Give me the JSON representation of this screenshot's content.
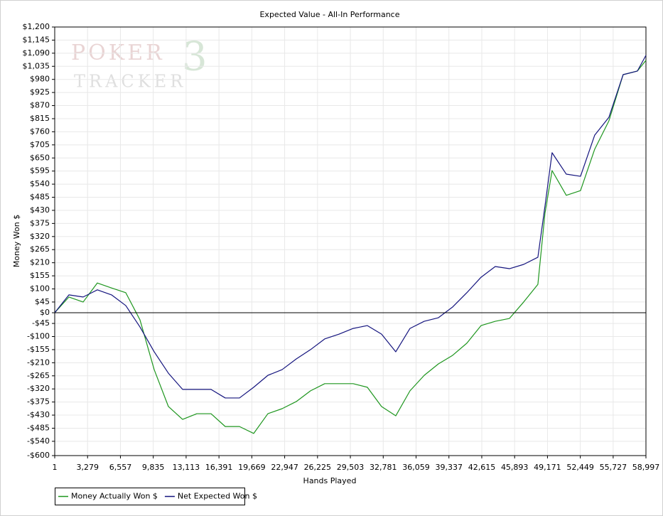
{
  "chart_data": {
    "type": "line",
    "title": "Expected Value - All-In Performance",
    "xlabel": "Hands Played",
    "ylabel": "Money Won $",
    "watermark": [
      "POKER",
      "TRACKER",
      "3"
    ],
    "x": [
      1,
      1419,
      2837,
      4255,
      5673,
      7091,
      8509,
      9927,
      11345,
      12763,
      14181,
      15599,
      17017,
      18435,
      19853,
      21271,
      22689,
      24107,
      25525,
      26943,
      28361,
      29779,
      31197,
      32615,
      34033,
      35451,
      36869,
      38287,
      39705,
      41123,
      42541,
      43959,
      45377,
      46795,
      48213,
      48922,
      49631,
      51049,
      52467,
      53885,
      55303,
      56721,
      58139,
      58997
    ],
    "series": [
      {
        "name": "Money Actually Won $",
        "color": "#1e961e",
        "values": [
          0,
          66,
          45,
          125,
          104,
          84,
          -30,
          -239,
          -394,
          -448,
          -424,
          -424,
          -478,
          -478,
          -507,
          -424,
          -403,
          -373,
          -328,
          -298,
          -298,
          -298,
          -313,
          -394,
          -433,
          -328,
          -263,
          -215,
          -179,
          -128,
          -54,
          -36,
          -24,
          45,
          119,
          418,
          597,
          493,
          513,
          687,
          806,
          1000,
          1015,
          1060
        ]
      },
      {
        "name": "Net Expected Won $",
        "color": "#14147e",
        "values": [
          0,
          75,
          66,
          96,
          75,
          30,
          -60,
          -164,
          -254,
          -322,
          -322,
          -322,
          -358,
          -358,
          -313,
          -263,
          -239,
          -194,
          -155,
          -110,
          -90,
          -66,
          -54,
          -90,
          -164,
          -66,
          -36,
          -21,
          24,
          84,
          149,
          194,
          185,
          203,
          233,
          448,
          672,
          582,
          573,
          746,
          821,
          1000,
          1015,
          1081
        ]
      }
    ],
    "xlim": [
      1,
      58997
    ],
    "xticks": [
      1,
      {
        "value": 3279,
        "label": "3,279"
      },
      {
        "value": 6557,
        "label": "6,557"
      },
      {
        "value": 9835,
        "label": "9,835"
      },
      {
        "value": 13113,
        "label": "13,113"
      },
      {
        "value": 16391,
        "label": "16,391"
      },
      {
        "value": 19669,
        "label": "19,669"
      },
      {
        "value": 22947,
        "label": "22,947"
      },
      {
        "value": 26225,
        "label": "26,225"
      },
      {
        "value": 29503,
        "label": "29,503"
      },
      {
        "value": 32781,
        "label": "32,781"
      },
      {
        "value": 36059,
        "label": "36,059"
      },
      {
        "value": 39337,
        "label": "39,337"
      },
      {
        "value": 42615,
        "label": "42,615"
      },
      {
        "value": 45893,
        "label": "45,893"
      },
      {
        "value": 49171,
        "label": "49,171"
      },
      {
        "value": 52449,
        "label": "52,449"
      },
      {
        "value": 55727,
        "label": "55,727"
      },
      {
        "value": 58997,
        "label": "58,997"
      }
    ],
    "ylim": [
      -600,
      1200
    ],
    "yticks": [
      {
        "value": -600,
        "label": "-$600"
      },
      {
        "value": -540,
        "label": "-$540"
      },
      {
        "value": -485,
        "label": "-$485"
      },
      {
        "value": -430,
        "label": "-$430"
      },
      {
        "value": -375,
        "label": "-$375"
      },
      {
        "value": -320,
        "label": "-$320"
      },
      {
        "value": -265,
        "label": "-$265"
      },
      {
        "value": -210,
        "label": "-$210"
      },
      {
        "value": -155,
        "label": "-$155"
      },
      {
        "value": -100,
        "label": "-$100"
      },
      {
        "value": -45,
        "label": "-$45"
      },
      {
        "value": 0,
        "label": "$0"
      },
      {
        "value": 45,
        "label": "$45"
      },
      {
        "value": 100,
        "label": "$100"
      },
      {
        "value": 155,
        "label": "$155"
      },
      {
        "value": 210,
        "label": "$210"
      },
      {
        "value": 265,
        "label": "$265"
      },
      {
        "value": 320,
        "label": "$320"
      },
      {
        "value": 375,
        "label": "$375"
      },
      {
        "value": 430,
        "label": "$430"
      },
      {
        "value": 485,
        "label": "$485"
      },
      {
        "value": 540,
        "label": "$540"
      },
      {
        "value": 595,
        "label": "$595"
      },
      {
        "value": 650,
        "label": "$650"
      },
      {
        "value": 705,
        "label": "$705"
      },
      {
        "value": 760,
        "label": "$760"
      },
      {
        "value": 815,
        "label": "$815"
      },
      {
        "value": 870,
        "label": "$870"
      },
      {
        "value": 925,
        "label": "$925"
      },
      {
        "value": 980,
        "label": "$980"
      },
      {
        "value": 1035,
        "label": "$1,035"
      },
      {
        "value": 1090,
        "label": "$1,090"
      },
      {
        "value": 1145,
        "label": "$1,145"
      },
      {
        "value": 1200,
        "label": "$1,200"
      }
    ],
    "grid": true,
    "zero_line": true,
    "legend": "bottom-left"
  }
}
